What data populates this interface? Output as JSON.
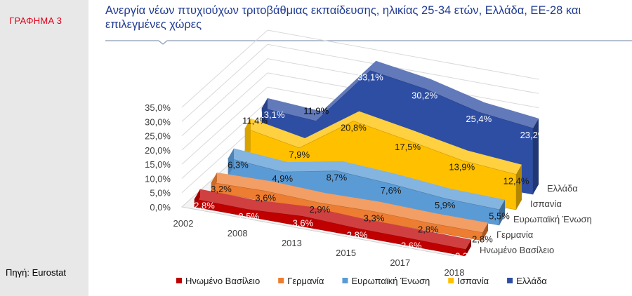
{
  "sidebar": {
    "graph_label": "ΓΡΑΦΗΜΑ 3",
    "source": "Πηγή: Eurostat"
  },
  "chart_data": {
    "type": "area",
    "style": "3d-stacked-ribbons",
    "title": "Ανεργία νέων πτυχιούχων τριτοβάθμιας εκπαίδευσης, ηλικίας 25-34 ετών, Ελλάδα, ΕΕ-28 και επιλεγμένες χώρες",
    "categories": [
      "2002",
      "2008",
      "2013",
      "2015",
      "2017",
      "2018"
    ],
    "ylim": [
      0,
      35
    ],
    "yticks": [
      "0,0%",
      "5,0%",
      "10,0%",
      "15,0%",
      "20,0%",
      "25,0%",
      "30,0%",
      "35,0%"
    ],
    "grid": true,
    "legend_position": "bottom",
    "series": [
      {
        "name": "Ηνωμένο Βασίλειο",
        "color": "#c00000",
        "values": [
          2.8,
          2.5,
          3.6,
          2.8,
          2.6,
          2.3
        ],
        "labels": [
          "2,8%",
          "2,5%",
          "3,6%",
          "2,8%",
          "2,6%",
          "2,3%"
        ]
      },
      {
        "name": "Γερμανία",
        "color": "#ed7d31",
        "values": [
          3.2,
          3.6,
          2.9,
          3.3,
          2.8,
          2.8
        ],
        "labels": [
          "3,2%",
          "3,6%",
          "2,9%",
          "3,3%",
          "2,8%",
          "2,8%"
        ]
      },
      {
        "name": "Ευρωπαϊκή Ένωση",
        "color": "#5b9bd5",
        "values": [
          6.3,
          4.9,
          8.7,
          7.6,
          5.9,
          5.5
        ],
        "labels": [
          "6,3%",
          "4,9%",
          "8,7%",
          "7,6%",
          "5,9%",
          "5,5%"
        ]
      },
      {
        "name": "Ισπανία",
        "color": "#ffc000",
        "values": [
          11.4,
          7.9,
          20.8,
          17.5,
          13.9,
          12.4
        ],
        "labels": [
          "11,4%",
          "7,9%",
          "20,8%",
          "17,5%",
          "13,9%",
          "12,4%"
        ]
      },
      {
        "name": "Ελλάδα",
        "color": "#2e4ea3",
        "values": [
          13.1,
          11.9,
          33.1,
          30.2,
          25.4,
          23.2
        ],
        "labels": [
          "13,1%",
          "11,9%",
          "33,1%",
          "30,2%",
          "25,4%",
          "23,2%"
        ]
      }
    ]
  }
}
